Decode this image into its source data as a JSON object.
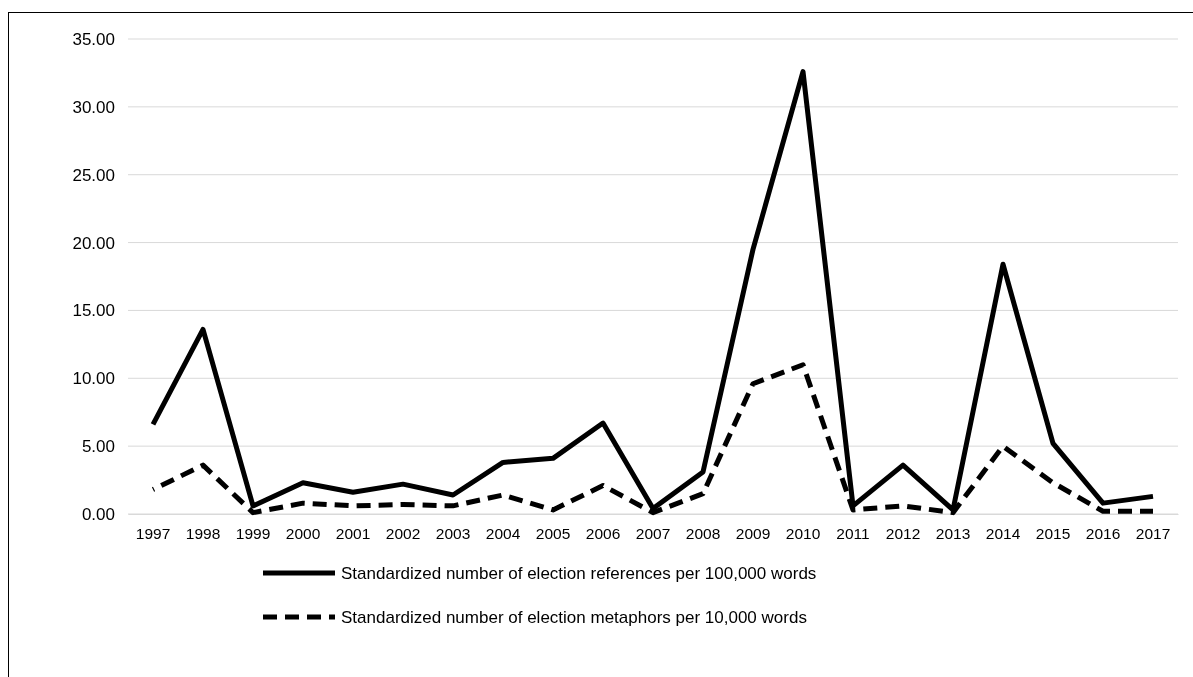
{
  "chart_data": {
    "type": "line",
    "categories": [
      "1997",
      "1998",
      "1999",
      "2000",
      "2001",
      "2002",
      "2003",
      "2004",
      "2005",
      "2006",
      "2007",
      "2008",
      "2009",
      "2010",
      "2011",
      "2012",
      "2013",
      "2014",
      "2015",
      "2016",
      "2017"
    ],
    "series": [
      {
        "name": "Standardized number of election references per 100,000 words",
        "color": "#000000",
        "line_style": "solid",
        "values": [
          6.6,
          13.6,
          0.6,
          2.3,
          1.6,
          2.2,
          1.4,
          3.8,
          4.1,
          6.7,
          0.4,
          3.1,
          19.5,
          32.6,
          0.6,
          3.6,
          0.3,
          18.4,
          5.2,
          0.8,
          1.3
        ]
      },
      {
        "name": "Standardized number of election metaphors per 10,000 words",
        "color": "#000000",
        "line_style": "dashed",
        "values": [
          1.8,
          3.6,
          0.1,
          0.8,
          0.6,
          0.7,
          0.6,
          1.4,
          0.3,
          2.1,
          0.1,
          1.5,
          9.6,
          11.0,
          0.3,
          0.6,
          0.1,
          5.0,
          2.3,
          0.2,
          0.2
        ]
      }
    ],
    "ylim": [
      0,
      35
    ],
    "yticks": [
      {
        "value": 0,
        "label": "0.00"
      },
      {
        "value": 5,
        "label": "5.00"
      },
      {
        "value": 10,
        "label": "10.00"
      },
      {
        "value": 15,
        "label": "15.00"
      },
      {
        "value": 20,
        "label": "20.00"
      },
      {
        "value": 25,
        "label": "25.00"
      },
      {
        "value": 30,
        "label": "30.00"
      },
      {
        "value": 35,
        "label": "35.00"
      }
    ],
    "grid": "y",
    "legend": "bottom",
    "marker": "none"
  }
}
